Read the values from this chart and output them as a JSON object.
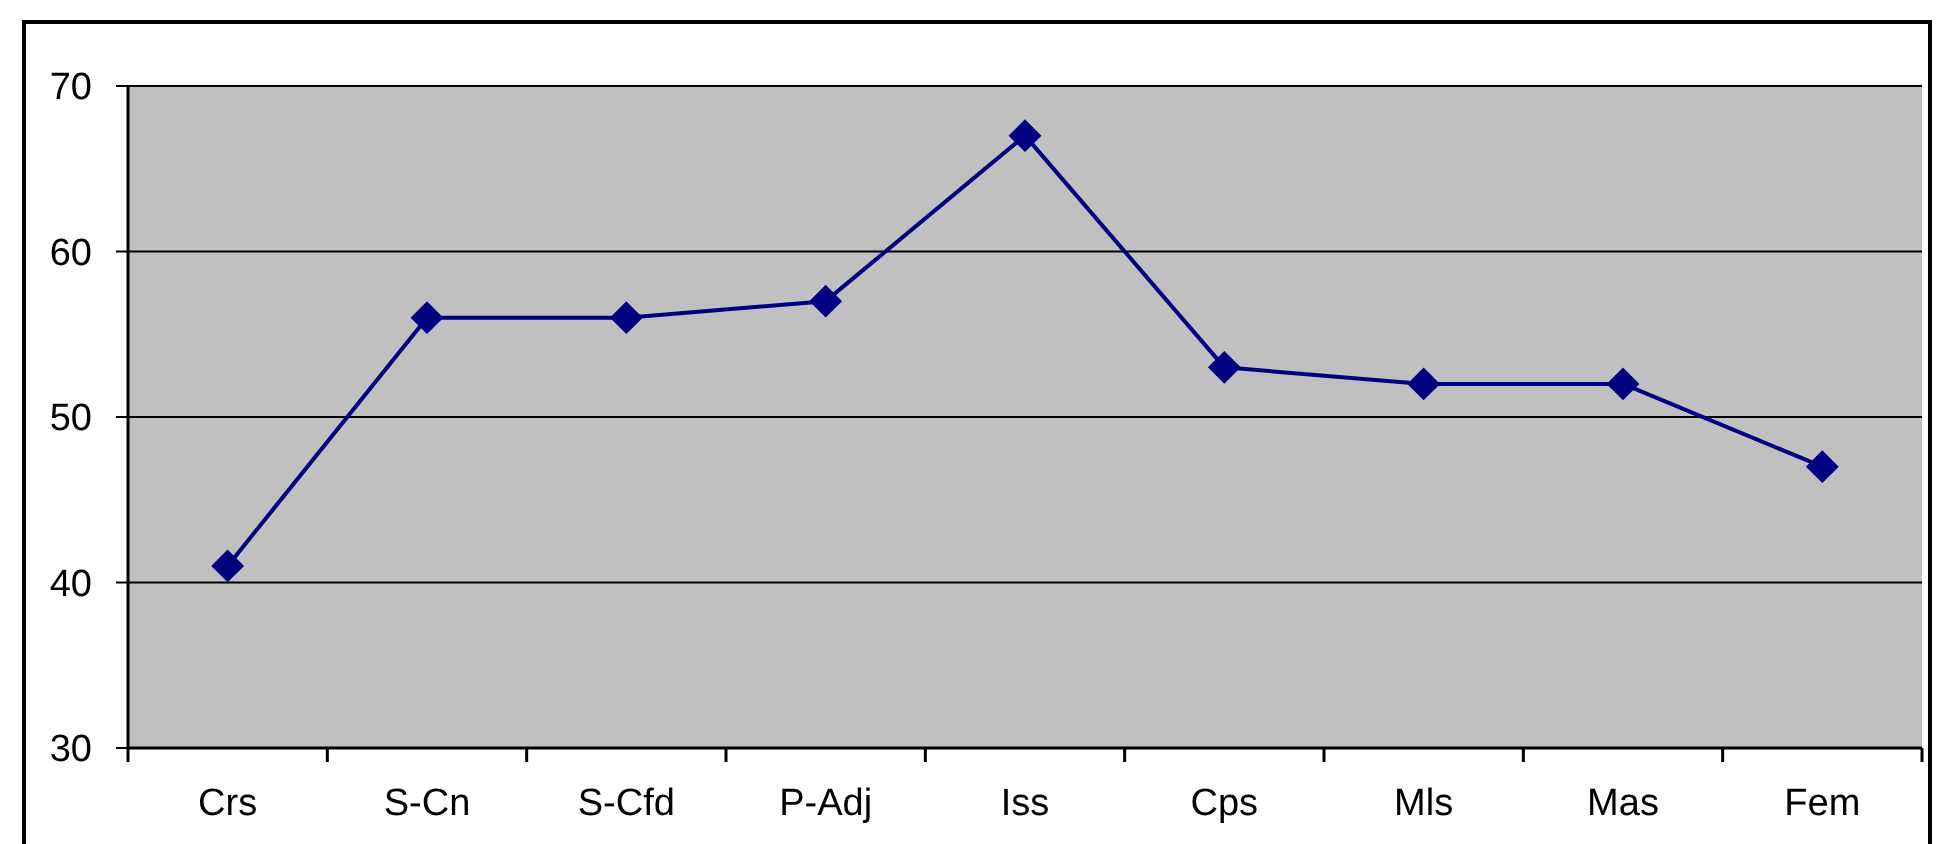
{
  "chart_data": {
    "type": "line",
    "categories": [
      "Crs",
      "S-Cn",
      "S-Cfd",
      "P-Adj",
      "Iss",
      "Cps",
      "Mls",
      "Mas",
      "Fem"
    ],
    "series": [
      {
        "color": "#000080",
        "values": [
          41,
          56,
          56,
          57,
          67,
          53,
          52,
          52,
          47
        ]
      }
    ],
    "ylim": [
      30,
      70
    ],
    "yticks": [
      30,
      40,
      50,
      60,
      70
    ],
    "grid": "y",
    "marker": "diamond",
    "line_style": "solid"
  }
}
